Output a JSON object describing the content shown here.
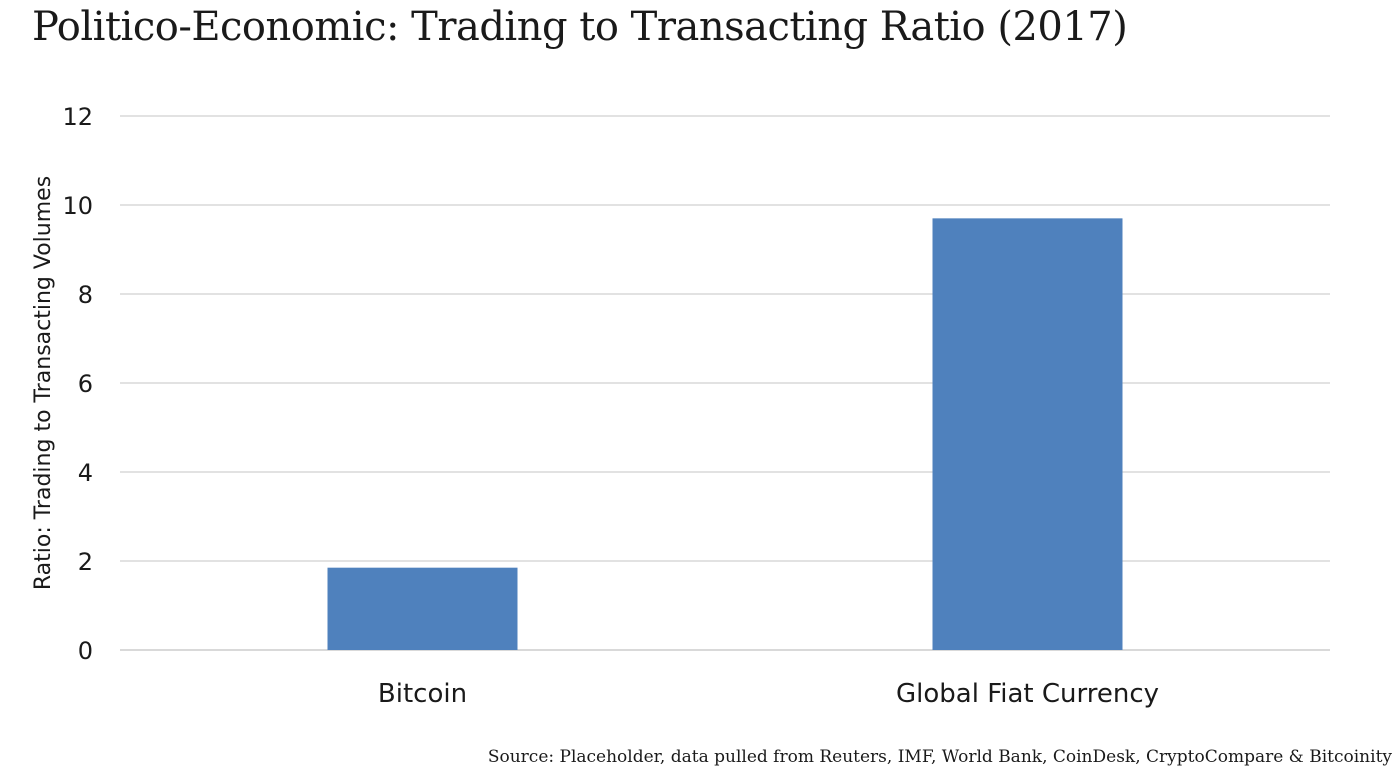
{
  "chart_data": {
    "type": "bar",
    "title": "Politico-Economic: Trading to Transacting Ratio (2017)",
    "xlabel": "",
    "ylabel": "Ratio: Trading to Transacting Volumes",
    "categories": [
      "Bitcoin",
      "Global Fiat Currency"
    ],
    "values": [
      1.85,
      9.7
    ],
    "ylim": [
      0,
      12
    ],
    "yticks": [
      "0",
      "2",
      "4",
      "6",
      "8",
      "10",
      "12"
    ],
    "grid": true,
    "bar_color": "#4f81bd",
    "grid_color": "#d9d9d9"
  },
  "source": "Source: Placeholder, data pulled from Reuters, IMF, World Bank, CoinDesk, CryptoCompare & Bitcoinity"
}
